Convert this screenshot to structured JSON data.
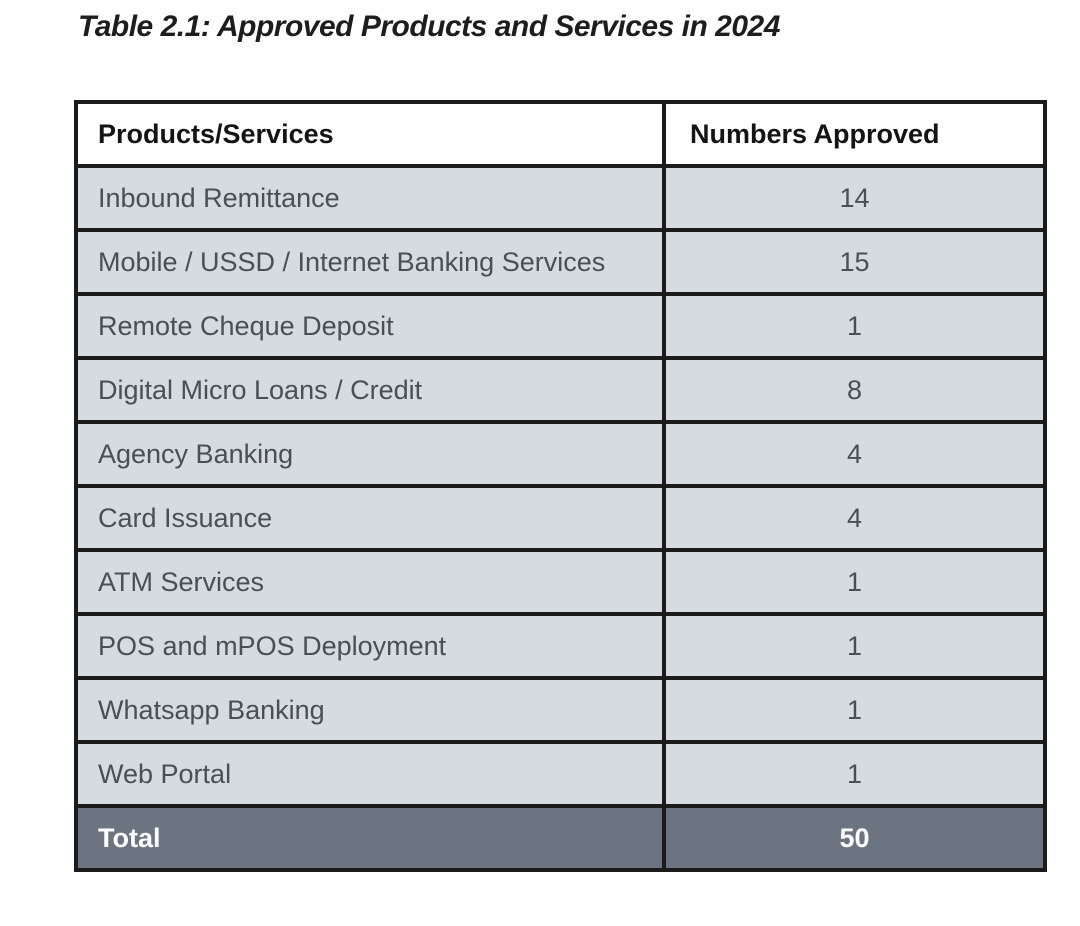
{
  "title": "Table 2.1: Approved Products and Services in 2024",
  "table": {
    "headers": {
      "products": "Products/Services",
      "numbers": "Numbers Approved"
    },
    "rows": [
      {
        "label": "Inbound Remittance",
        "value": "14"
      },
      {
        "label": "Mobile / USSD / Internet Banking Services",
        "value": "15"
      },
      {
        "label": "Remote Cheque Deposit",
        "value": "1"
      },
      {
        "label": "Digital Micro Loans / Credit",
        "value": "8"
      },
      {
        "label": "Agency Banking",
        "value": "4"
      },
      {
        "label": "Card Issuance",
        "value": "4"
      },
      {
        "label": "ATM Services",
        "value": "1"
      },
      {
        "label": "POS and mPOS Deployment",
        "value": "1"
      },
      {
        "label": "Whatsapp Banking",
        "value": "1"
      },
      {
        "label": "Web Portal",
        "value": "1"
      }
    ],
    "total": {
      "label": "Total",
      "value": "50"
    }
  },
  "colors": {
    "row_background": "#d6dbdf",
    "header_background": "#ffffff",
    "total_background": "#6b7480",
    "border": "#1b1b1b",
    "body_text": "#4a4f55",
    "header_text": "#141414",
    "total_text": "#ffffff"
  },
  "chart_data": {
    "type": "table",
    "title": "Table 2.1: Approved Products and Services in 2024",
    "columns": [
      "Products/Services",
      "Numbers Approved"
    ],
    "rows": [
      [
        "Inbound Remittance",
        14
      ],
      [
        "Mobile / USSD / Internet Banking Services",
        15
      ],
      [
        "Remote Cheque Deposit",
        1
      ],
      [
        "Digital Micro Loans / Credit",
        8
      ],
      [
        "Agency Banking",
        4
      ],
      [
        "Card Issuance",
        4
      ],
      [
        "ATM Services",
        1
      ],
      [
        "POS and mPOS Deployment",
        1
      ],
      [
        "Whatsapp Banking",
        1
      ],
      [
        "Web Portal",
        1
      ]
    ],
    "total": [
      "Total",
      50
    ]
  }
}
